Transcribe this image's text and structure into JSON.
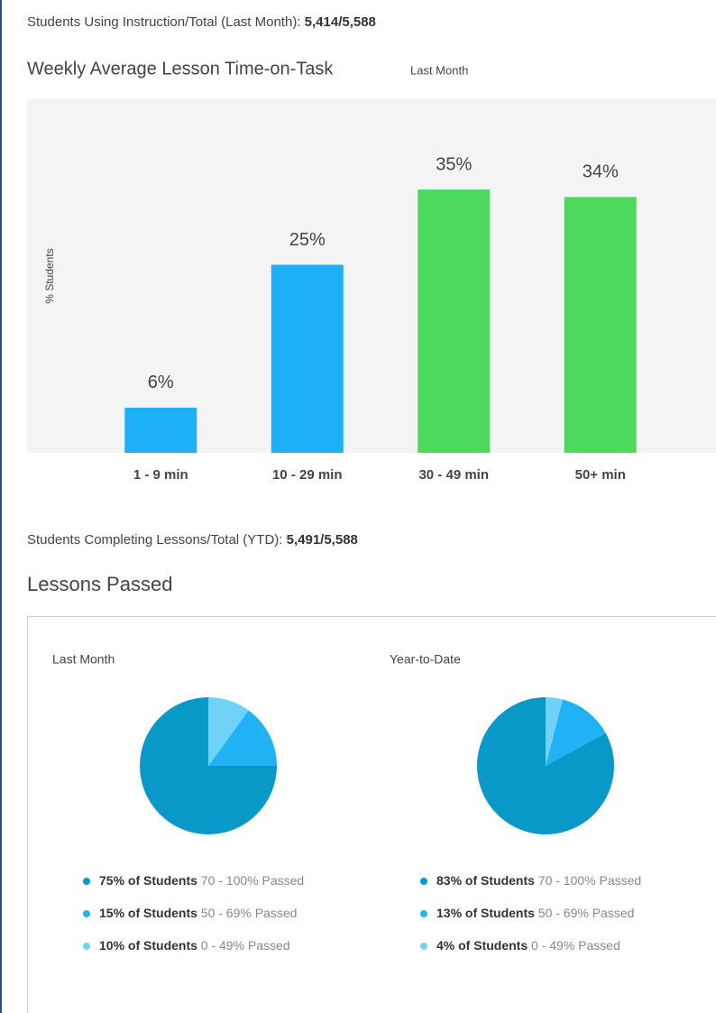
{
  "header": {
    "usage_label": "Students Using Instruction/Total (Last Month):",
    "usage_value": "5,414/5,588",
    "completion_label": "Students Completing Lessons/Total (YTD):",
    "completion_value": "5,491/5,588",
    "section_title": "Lessons Passed"
  },
  "chart_data": [
    {
      "type": "bar",
      "title": "Weekly Average Lesson Time-on-Task",
      "subtitle": "Last Month",
      "ylabel": "% Students",
      "categories": [
        "1 - 9 min",
        "10 - 29 min",
        "30 - 49 min",
        "50+ min"
      ],
      "values": [
        6,
        25,
        35,
        34
      ],
      "value_labels": [
        "6%",
        "25%",
        "35%",
        "34%"
      ],
      "colors": [
        "#1eb0f7",
        "#1eb0f7",
        "#4cd95e",
        "#4cd95e"
      ],
      "category_label_colors": [
        "#444444",
        "#444444",
        "#4cd95e",
        "#444444"
      ],
      "ylim": [
        0,
        47
      ]
    },
    {
      "type": "pie",
      "title": "Last Month",
      "values": [
        75,
        15,
        10
      ],
      "value_labels": [
        "75% of Students",
        "15% of Students",
        "10% of Students"
      ],
      "categories": [
        "70 - 100% Passed",
        "50 - 69% Passed",
        "0 - 49% Passed"
      ],
      "colors": [
        "#0899c9",
        "#21b2f5",
        "#6fd3f7"
      ]
    },
    {
      "type": "pie",
      "title": "Year-to-Date",
      "values": [
        83,
        13,
        4
      ],
      "value_labels": [
        "83% of Students",
        "13% of Students",
        "4% of Students"
      ],
      "categories": [
        "70 - 100% Passed",
        "50 - 69% Passed",
        "0 - 49% Passed"
      ],
      "colors": [
        "#0899c9",
        "#21b2f5",
        "#6fd3f7"
      ]
    }
  ]
}
